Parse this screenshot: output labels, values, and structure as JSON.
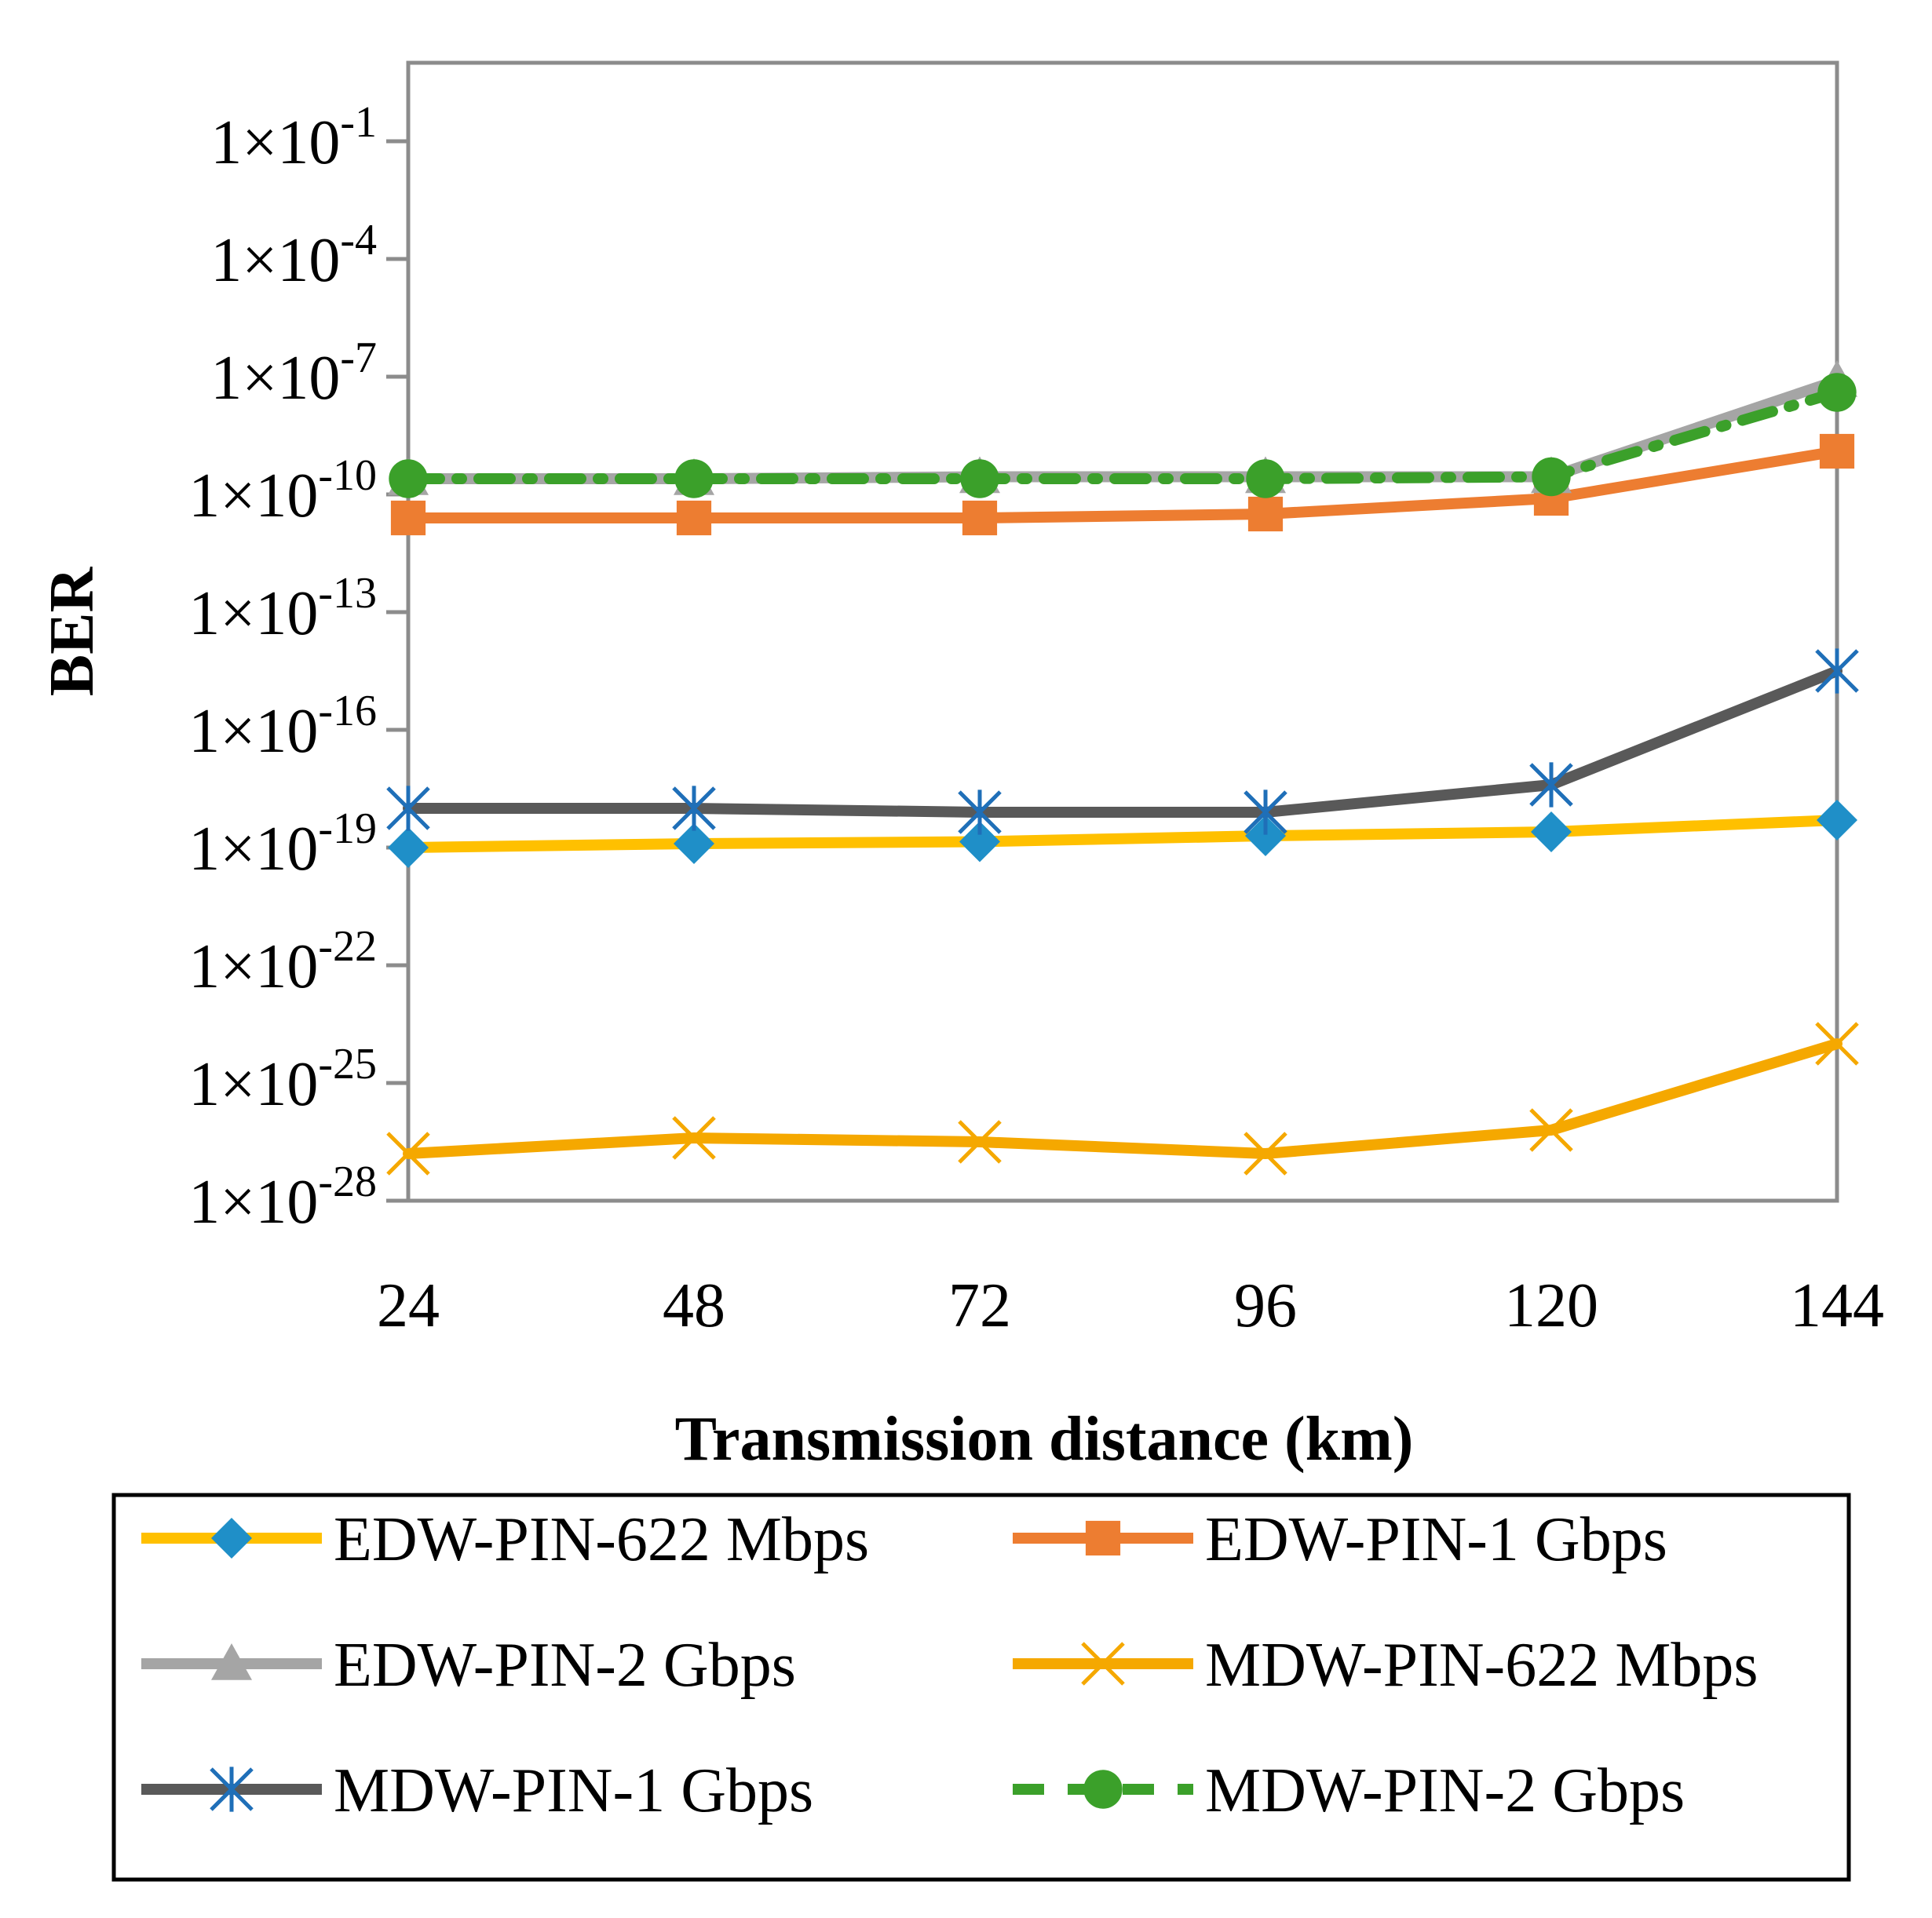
{
  "chart_data": {
    "type": "line",
    "title": "",
    "xlabel": "Transmission distance (km)",
    "ylabel": "BER",
    "yscale": "log",
    "ylim_exponent": [
      -28,
      1
    ],
    "ytick_exponents": [
      -28,
      -25,
      -22,
      -19,
      -16,
      -13,
      -10,
      -7,
      -4,
      -1
    ],
    "ytick_prefix": "1×10",
    "x": [
      24,
      48,
      72,
      96,
      120,
      144
    ],
    "x_labels": [
      "24",
      "48",
      "72",
      "96",
      "120",
      "144"
    ],
    "series": [
      {
        "name": "EDW-PIN-622 Mbps",
        "line_color": "#FFC000",
        "marker": "diamond",
        "marker_color": "#1F8FC8",
        "dash": "solid",
        "log10_values": [
          -19.0,
          -18.9,
          -18.85,
          -18.7,
          -18.6,
          -18.3
        ]
      },
      {
        "name": "EDW-PIN-1 Gbps",
        "line_color": "#ED7D31",
        "marker": "square",
        "marker_color": "#ED7D31",
        "dash": "solid",
        "log10_values": [
          -10.6,
          -10.6,
          -10.6,
          -10.5,
          -10.1,
          -8.9
        ]
      },
      {
        "name": "EDW-PIN-2 Gbps",
        "line_color": "#A5A5A5",
        "marker": "triangle",
        "marker_color": "#A5A5A5",
        "dash": "solid",
        "log10_values": [
          -9.6,
          -9.6,
          -9.55,
          -9.55,
          -9.55,
          -7.1
        ]
      },
      {
        "name": "MDW-PIN-622 Mbps",
        "line_color": "#F5A800",
        "marker": "x",
        "marker_color": "#F5A800",
        "dash": "solid",
        "log10_values": [
          -26.8,
          -26.4,
          -26.5,
          -26.8,
          -26.2,
          -24.0
        ]
      },
      {
        "name": "MDW-PIN-1 Gbps",
        "line_color": "#595959",
        "marker": "asterisk",
        "marker_color": "#1F6FB8",
        "dash": "solid",
        "log10_values": [
          -18.0,
          -18.0,
          -18.1,
          -18.1,
          -17.4,
          -14.5
        ]
      },
      {
        "name": "MDW-PIN-2 Gbps",
        "line_color": "#3BA02A",
        "marker": "circle",
        "marker_color": "#3BA02A",
        "dash": "dash-dot",
        "log10_values": [
          -9.6,
          -9.6,
          -9.6,
          -9.6,
          -9.55,
          -7.4
        ]
      }
    ],
    "legend_position": "bottom"
  }
}
